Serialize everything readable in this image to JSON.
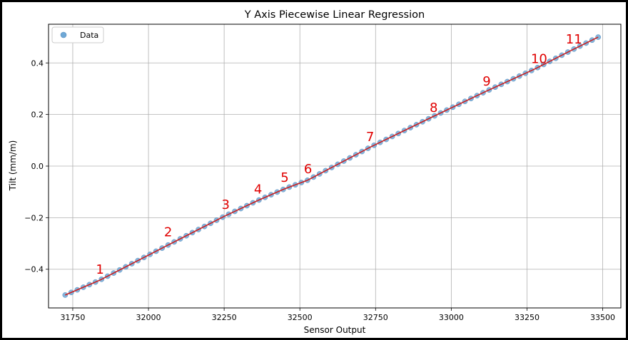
{
  "chart_data": {
    "type": "scatter",
    "title": "Y Axis Piecewise Linear Regression",
    "xlabel": "Sensor Output",
    "ylabel": "Tilt (mm/m)",
    "xlim": [
      31670,
      33560
    ],
    "ylim": [
      -0.55,
      0.55
    ],
    "xticks": [
      31750,
      32000,
      32250,
      32500,
      32750,
      33000,
      33250,
      33500
    ],
    "yticks": [
      -0.4,
      -0.2,
      0.0,
      0.2,
      0.4
    ],
    "xtick_labels": [
      "31750",
      "32000",
      "32250",
      "32500",
      "32750",
      "33000",
      "33250",
      "33500"
    ],
    "ytick_labels": [
      "−0.4",
      "−0.2",
      "0.0",
      "0.2",
      "0.4"
    ],
    "grid": true,
    "legend": {
      "position": "top-left",
      "entries": [
        "Data"
      ]
    },
    "series": [
      {
        "name": "Data",
        "style": "markers",
        "color": "#6fa8d6",
        "x_start": 31725,
        "x_end": 33485,
        "count": 89,
        "line_color": "#cc1f1f"
      }
    ],
    "breakpoints": [
      {
        "x": 31725,
        "y": -0.5
      },
      {
        "x": 31840,
        "y": -0.442
      },
      {
        "x": 32060,
        "y": -0.309
      },
      {
        "x": 32250,
        "y": -0.195
      },
      {
        "x": 32360,
        "y": -0.134
      },
      {
        "x": 32450,
        "y": -0.088
      },
      {
        "x": 32525,
        "y": -0.055
      },
      {
        "x": 32730,
        "y": 0.072
      },
      {
        "x": 32940,
        "y": 0.192
      },
      {
        "x": 33115,
        "y": 0.29
      },
      {
        "x": 33275,
        "y": 0.376
      },
      {
        "x": 33395,
        "y": 0.448
      },
      {
        "x": 33485,
        "y": 0.5
      }
    ],
    "segment_labels": [
      {
        "text": "1",
        "x": 31840,
        "y": -0.418
      },
      {
        "text": "2",
        "x": 32065,
        "y": -0.272
      },
      {
        "text": "3",
        "x": 32255,
        "y": -0.166
      },
      {
        "text": "4",
        "x": 32362,
        "y": -0.106
      },
      {
        "text": "5",
        "x": 32450,
        "y": -0.061
      },
      {
        "text": "6",
        "x": 32527,
        "y": -0.028
      },
      {
        "text": "7",
        "x": 32732,
        "y": 0.097
      },
      {
        "text": "8",
        "x": 32942,
        "y": 0.21
      },
      {
        "text": "9",
        "x": 33117,
        "y": 0.312
      },
      {
        "text": "10",
        "x": 33290,
        "y": 0.4
      },
      {
        "text": "11",
        "x": 33405,
        "y": 0.475
      }
    ]
  }
}
